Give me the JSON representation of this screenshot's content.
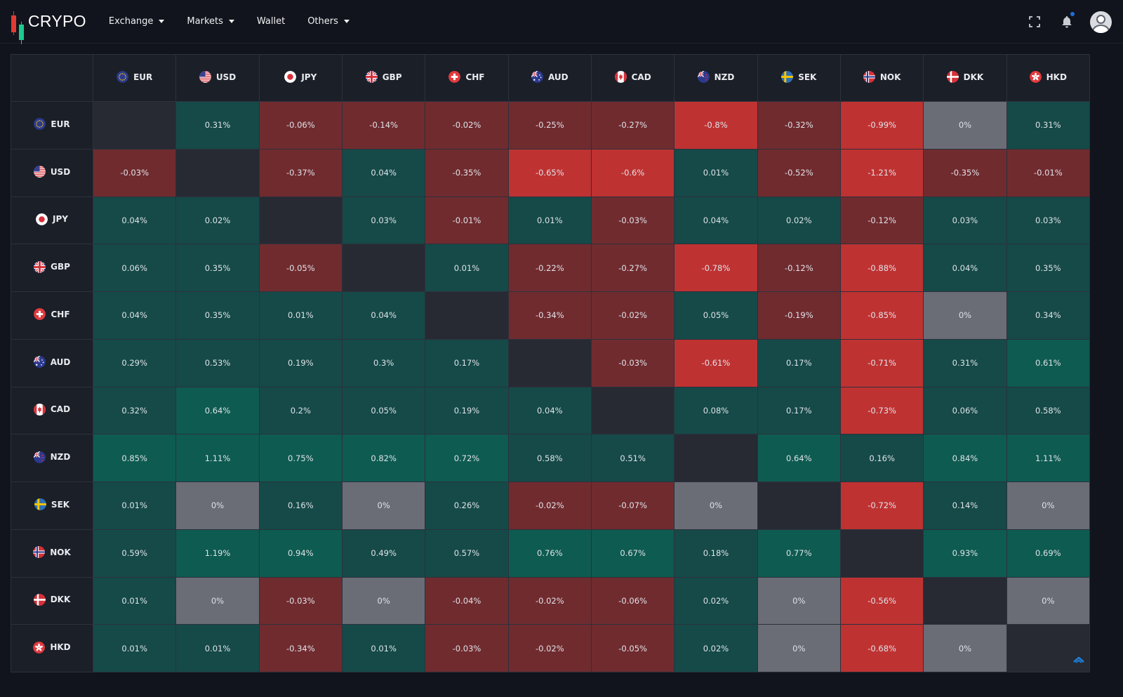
{
  "header": {
    "brand": "CRYPO",
    "nav": [
      {
        "label": "Exchange",
        "dropdown": true
      },
      {
        "label": "Markets",
        "dropdown": true
      },
      {
        "label": "Wallet",
        "dropdown": false
      },
      {
        "label": "Others",
        "dropdown": true
      }
    ],
    "icons": [
      "fullscreen-icon",
      "bell-icon",
      "avatar"
    ]
  },
  "colors": {
    "background": "#11141c",
    "header_cell": "#1b1f28",
    "self_cell": "#272a33",
    "zero_cell": "#6a6c76",
    "green_low": "#154a48",
    "green_high": "#0e5b51",
    "red_low": "#702b2f",
    "red_high": "#bf3232",
    "brand_red": "#e23a35",
    "brand_green": "#1ec98f"
  },
  "currencies": [
    "EUR",
    "USD",
    "JPY",
    "GBP",
    "CHF",
    "AUD",
    "CAD",
    "NZD",
    "SEK",
    "NOK",
    "DKK",
    "HKD"
  ],
  "matrix": [
    [
      "",
      "0.31%",
      "-0.06%",
      "-0.14%",
      "-0.02%",
      "-0.25%",
      "-0.27%",
      "-0.8%",
      "-0.32%",
      "-0.99%",
      "0%",
      "0.31%"
    ],
    [
      "-0.03%",
      "",
      "-0.37%",
      "0.04%",
      "-0.35%",
      "-0.65%",
      "-0.6%",
      "0.01%",
      "-0.52%",
      "-1.21%",
      "-0.35%",
      "-0.01%"
    ],
    [
      "0.04%",
      "0.02%",
      "",
      "0.03%",
      "-0.01%",
      "0.01%",
      "-0.03%",
      "0.04%",
      "0.02%",
      "-0.12%",
      "0.03%",
      "0.03%"
    ],
    [
      "0.06%",
      "0.35%",
      "-0.05%",
      "",
      "0.01%",
      "-0.22%",
      "-0.27%",
      "-0.78%",
      "-0.12%",
      "-0.88%",
      "0.04%",
      "0.35%"
    ],
    [
      "0.04%",
      "0.35%",
      "0.01%",
      "0.04%",
      "",
      "-0.34%",
      "-0.02%",
      "0.05%",
      "-0.19%",
      "-0.85%",
      "0%",
      "0.34%"
    ],
    [
      "0.29%",
      "0.53%",
      "0.19%",
      "0.3%",
      "0.17%",
      "",
      "-0.03%",
      "-0.61%",
      "0.17%",
      "-0.71%",
      "0.31%",
      "0.61%"
    ],
    [
      "0.32%",
      "0.64%",
      "0.2%",
      "0.05%",
      "0.19%",
      "0.04%",
      "",
      "0.08%",
      "0.17%",
      "-0.73%",
      "0.06%",
      "0.58%"
    ],
    [
      "0.85%",
      "1.11%",
      "0.75%",
      "0.82%",
      "0.72%",
      "0.58%",
      "0.51%",
      "",
      "0.64%",
      "0.16%",
      "0.84%",
      "1.11%"
    ],
    [
      "0.01%",
      "0%",
      "0.16%",
      "0%",
      "0.26%",
      "-0.02%",
      "-0.07%",
      "0%",
      "",
      "-0.72%",
      "0.14%",
      "0%"
    ],
    [
      "0.59%",
      "1.19%",
      "0.94%",
      "0.49%",
      "0.57%",
      "0.76%",
      "0.67%",
      "0.18%",
      "0.77%",
      "",
      "0.93%",
      "0.69%"
    ],
    [
      "0.01%",
      "0%",
      "-0.03%",
      "0%",
      "-0.04%",
      "-0.02%",
      "-0.06%",
      "0.02%",
      "0%",
      "-0.56%",
      "",
      "0%"
    ],
    [
      "0.01%",
      "0.01%",
      "-0.34%",
      "0.01%",
      "-0.03%",
      "-0.02%",
      "-0.05%",
      "0.02%",
      "0%",
      "-0.68%",
      "0%",
      ""
    ]
  ]
}
